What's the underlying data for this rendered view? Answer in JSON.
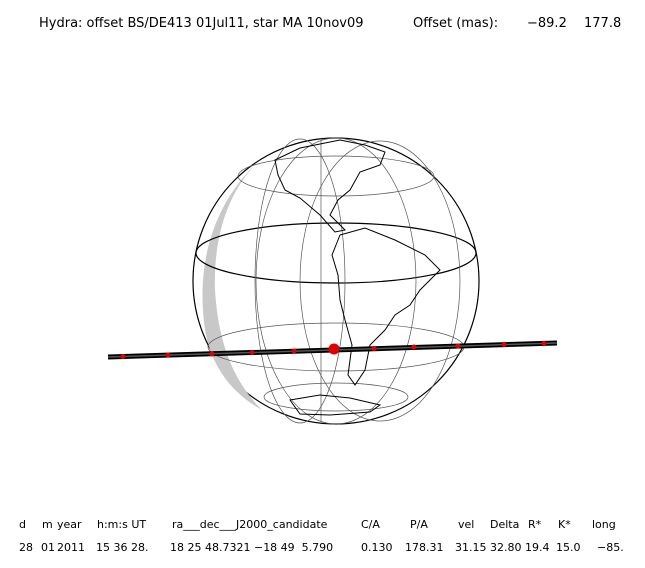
{
  "header": {
    "title": "Hydra: offset BS/DE413 01Jul11, star MA 10nov09",
    "offset_label": "Offset (mas):",
    "offset_values": [
      "−89.2",
      "177.8"
    ]
  },
  "table": {
    "columns": [
      "d",
      "m",
      "year",
      "h:m:s UT",
      "ra___dec___J2000_candidate",
      "C/A",
      "P/A",
      "vel",
      "Delta",
      "R*",
      "K*",
      "long"
    ],
    "rows": [
      [
        "28",
        "01",
        "2011",
        "15 36 28.",
        "18 25 48.7321 −18 49  5.790",
        "0.130",
        "178.31",
        "31.15",
        "32.80",
        "19.4",
        "15.0",
        "−85."
      ]
    ]
  }
}
